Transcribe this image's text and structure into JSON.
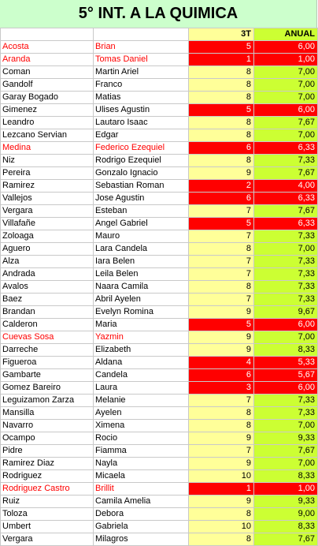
{
  "title": "5° INT. A LA QUIMICA",
  "headers": {
    "apellido": "",
    "nombre": "",
    "nota": "3T",
    "anual": "ANUAL"
  },
  "rows": [
    {
      "apellido": "Acosta",
      "nombre": "Brian",
      "nota": "5",
      "anual": "6,00",
      "fail": true,
      "red_name": true
    },
    {
      "apellido": "Aranda",
      "nombre": "Tomas Daniel",
      "nota": "1",
      "anual": "1,00",
      "fail": true,
      "red_name": true
    },
    {
      "apellido": "Coman",
      "nombre": "Martin Ariel",
      "nota": "8",
      "anual": "7,00",
      "fail": false,
      "red_name": false
    },
    {
      "apellido": "Gandolf",
      "nombre": "Franco",
      "nota": "8",
      "anual": "7,00",
      "fail": false,
      "red_name": false
    },
    {
      "apellido": "Garay Bogado",
      "nombre": "Matias",
      "nota": "8",
      "anual": "7,00",
      "fail": false,
      "red_name": false
    },
    {
      "apellido": "Gimenez",
      "nombre": "Ulises Agustin",
      "nota": "5",
      "anual": "6,00",
      "fail": true,
      "red_name": false
    },
    {
      "apellido": "Leandro",
      "nombre": "Lautaro Isaac",
      "nota": "8",
      "anual": "7,67",
      "fail": false,
      "red_name": false
    },
    {
      "apellido": "Lezcano Servian",
      "nombre": "Edgar",
      "nota": "8",
      "anual": "7,00",
      "fail": false,
      "red_name": false
    },
    {
      "apellido": "Medina",
      "nombre": "Federico Ezequiel",
      "nota": "6",
      "anual": "6,33",
      "fail": true,
      "red_name": true
    },
    {
      "apellido": "Niz",
      "nombre": "Rodrigo Ezequiel",
      "nota": "8",
      "anual": "7,33",
      "fail": false,
      "red_name": false
    },
    {
      "apellido": "Pereira",
      "nombre": "Gonzalo Ignacio",
      "nota": "9",
      "anual": "7,67",
      "fail": false,
      "red_name": false
    },
    {
      "apellido": "Ramirez",
      "nombre": "Sebastian Roman",
      "nota": "2",
      "anual": "4,00",
      "fail": true,
      "red_name": false
    },
    {
      "apellido": "Vallejos",
      "nombre": "Jose Agustin",
      "nota": "6",
      "anual": "6,33",
      "fail": true,
      "red_name": false
    },
    {
      "apellido": "Vergara",
      "nombre": "Esteban",
      "nota": "7",
      "anual": "7,67",
      "fail": false,
      "red_name": false
    },
    {
      "apellido": "Villafañe",
      "nombre": "Angel Gabriel",
      "nota": "5",
      "anual": "6,33",
      "fail": true,
      "red_name": false
    },
    {
      "apellido": "Zoloaga",
      "nombre": "Mauro",
      "nota": "7",
      "anual": "7,33",
      "fail": false,
      "red_name": false
    },
    {
      "apellido": "Aguero",
      "nombre": "Lara Candela",
      "nota": "8",
      "anual": "7,00",
      "fail": false,
      "red_name": false
    },
    {
      "apellido": "Alza",
      "nombre": "Iara Belen",
      "nota": "7",
      "anual": "7,33",
      "fail": false,
      "red_name": false
    },
    {
      "apellido": "Andrada",
      "nombre": "Leila Belen",
      "nota": "7",
      "anual": "7,33",
      "fail": false,
      "red_name": false
    },
    {
      "apellido": "Avalos",
      "nombre": "Naara Camila",
      "nota": "8",
      "anual": "7,33",
      "fail": false,
      "red_name": false
    },
    {
      "apellido": "Baez",
      "nombre": "Abril Ayelen",
      "nota": "7",
      "anual": "7,33",
      "fail": false,
      "red_name": false
    },
    {
      "apellido": "Brandan",
      "nombre": "Evelyn Romina",
      "nota": "9",
      "anual": "9,67",
      "fail": false,
      "red_name": false
    },
    {
      "apellido": "Calderon",
      "nombre": "Maria",
      "nota": "5",
      "anual": "6,00",
      "fail": true,
      "red_name": false
    },
    {
      "apellido": "Cuevas Sosa",
      "nombre": "Yazmin",
      "nota": "9",
      "anual": "7,00",
      "fail": false,
      "red_name": true
    },
    {
      "apellido": "Darreche",
      "nombre": "Elizabeth",
      "nota": "9",
      "anual": "8,33",
      "fail": false,
      "red_name": false
    },
    {
      "apellido": "Figueroa",
      "nombre": "Aldana",
      "nota": "4",
      "anual": "5,33",
      "fail": true,
      "red_name": false
    },
    {
      "apellido": "Gambarte",
      "nombre": "Candela",
      "nota": "6",
      "anual": "5,67",
      "fail": true,
      "red_name": false
    },
    {
      "apellido": "Gomez Bareiro",
      "nombre": "Laura",
      "nota": "3",
      "anual": "6,00",
      "fail": true,
      "red_name": false
    },
    {
      "apellido": "Leguizamon Zarza",
      "nombre": "Melanie",
      "nota": "7",
      "anual": "7,33",
      "fail": false,
      "red_name": false
    },
    {
      "apellido": "Mansilla",
      "nombre": "Ayelen",
      "nota": "8",
      "anual": "7,33",
      "fail": false,
      "red_name": false
    },
    {
      "apellido": "Navarro",
      "nombre": "Ximena",
      "nota": "8",
      "anual": "7,00",
      "fail": false,
      "red_name": false
    },
    {
      "apellido": "Ocampo",
      "nombre": "Rocio",
      "nota": "9",
      "anual": "9,33",
      "fail": false,
      "red_name": false
    },
    {
      "apellido": "Pidre",
      "nombre": "Fiamma",
      "nota": "7",
      "anual": "7,67",
      "fail": false,
      "red_name": false
    },
    {
      "apellido": "Ramirez Diaz",
      "nombre": "Nayla",
      "nota": "9",
      "anual": "7,00",
      "fail": false,
      "red_name": false
    },
    {
      "apellido": "Rodriguez",
      "nombre": "Micaela",
      "nota": "10",
      "anual": "8,33",
      "fail": false,
      "red_name": false
    },
    {
      "apellido": "Rodriguez Castro",
      "nombre": "Brillit",
      "nota": "1",
      "anual": "1,00",
      "fail": true,
      "red_name": true
    },
    {
      "apellido": "Ruiz",
      "nombre": "Camila Amelia",
      "nota": "9",
      "anual": "9,33",
      "fail": false,
      "red_name": false
    },
    {
      "apellido": "Toloza",
      "nombre": "Debora",
      "nota": "8",
      "anual": "9,00",
      "fail": false,
      "red_name": false
    },
    {
      "apellido": "Umbert",
      "nombre": "Gabriela",
      "nota": "10",
      "anual": "8,33",
      "fail": false,
      "red_name": false
    },
    {
      "apellido": "Vergara",
      "nombre": "Milagros",
      "nota": "8",
      "anual": "7,67",
      "fail": false,
      "red_name": false
    }
  ],
  "colors": {
    "title_bg": "#ccffcc",
    "nota_bg": "#ffff99",
    "anual_bg": "#ccff33",
    "fail_bg": "#ff0000",
    "fail_text": "#ffffff",
    "red_name_text": "#ff0000"
  }
}
